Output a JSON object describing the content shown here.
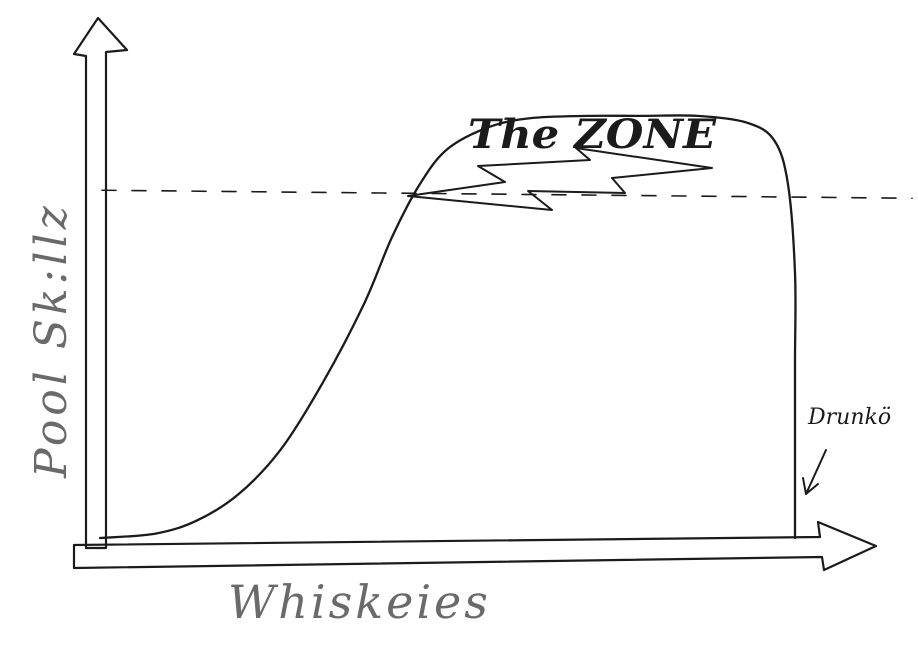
{
  "chart_data": {
    "type": "line",
    "xlabel": "Whiskeies",
    "ylabel": "Pool Sk:llz",
    "annotations": {
      "zone_label": "The ZONE",
      "drunk_label": "Drunkö"
    },
    "xlim": [
      0,
      100
    ],
    "ylim": [
      0,
      100
    ],
    "zone_threshold": 78,
    "series": [
      {
        "x": [
          0,
          8,
          14,
          20,
          26,
          32,
          38,
          42,
          46,
          50,
          56,
          62,
          70,
          78,
          86,
          93,
          97,
          99,
          100,
          100,
          100,
          100,
          100
        ],
        "y": [
          0,
          1,
          4,
          10,
          20,
          35,
          53,
          68,
          80,
          88,
          93,
          95,
          95.5,
          95.5,
          95.5,
          94,
          90,
          80,
          60,
          40,
          20,
          5,
          0
        ]
      }
    ],
    "grid": false,
    "legend": "none"
  }
}
